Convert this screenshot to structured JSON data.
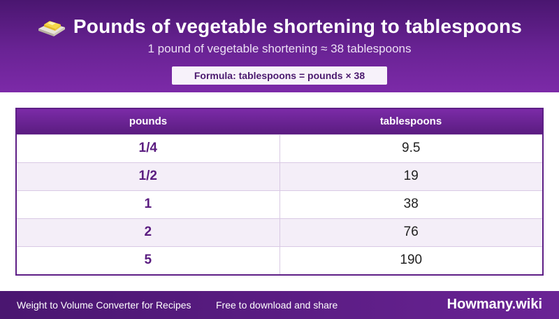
{
  "header": {
    "title": "Pounds of vegetable shortening to tablespoons",
    "icon": "butter-icon",
    "subtitle": "1 pound of vegetable shortening ≈ 38 tablespoons",
    "formula": "Formula: tablespoons = pounds × 38"
  },
  "table": {
    "columns": [
      "pounds",
      "tablespoons"
    ],
    "rows": [
      {
        "pounds": "1/4",
        "tablespoons": "9.5"
      },
      {
        "pounds": "1/2",
        "tablespoons": "19"
      },
      {
        "pounds": "1",
        "tablespoons": "38"
      },
      {
        "pounds": "2",
        "tablespoons": "76"
      },
      {
        "pounds": "5",
        "tablespoons": "190"
      }
    ]
  },
  "footer": {
    "left": "Weight to Volume Converter for Recipes",
    "middle": "Free to download and share",
    "brand": "Howmany.wiki"
  },
  "colors": {
    "header": "#6a2395",
    "accent": "#5a1c80",
    "row_alt": "#f4eef8"
  }
}
